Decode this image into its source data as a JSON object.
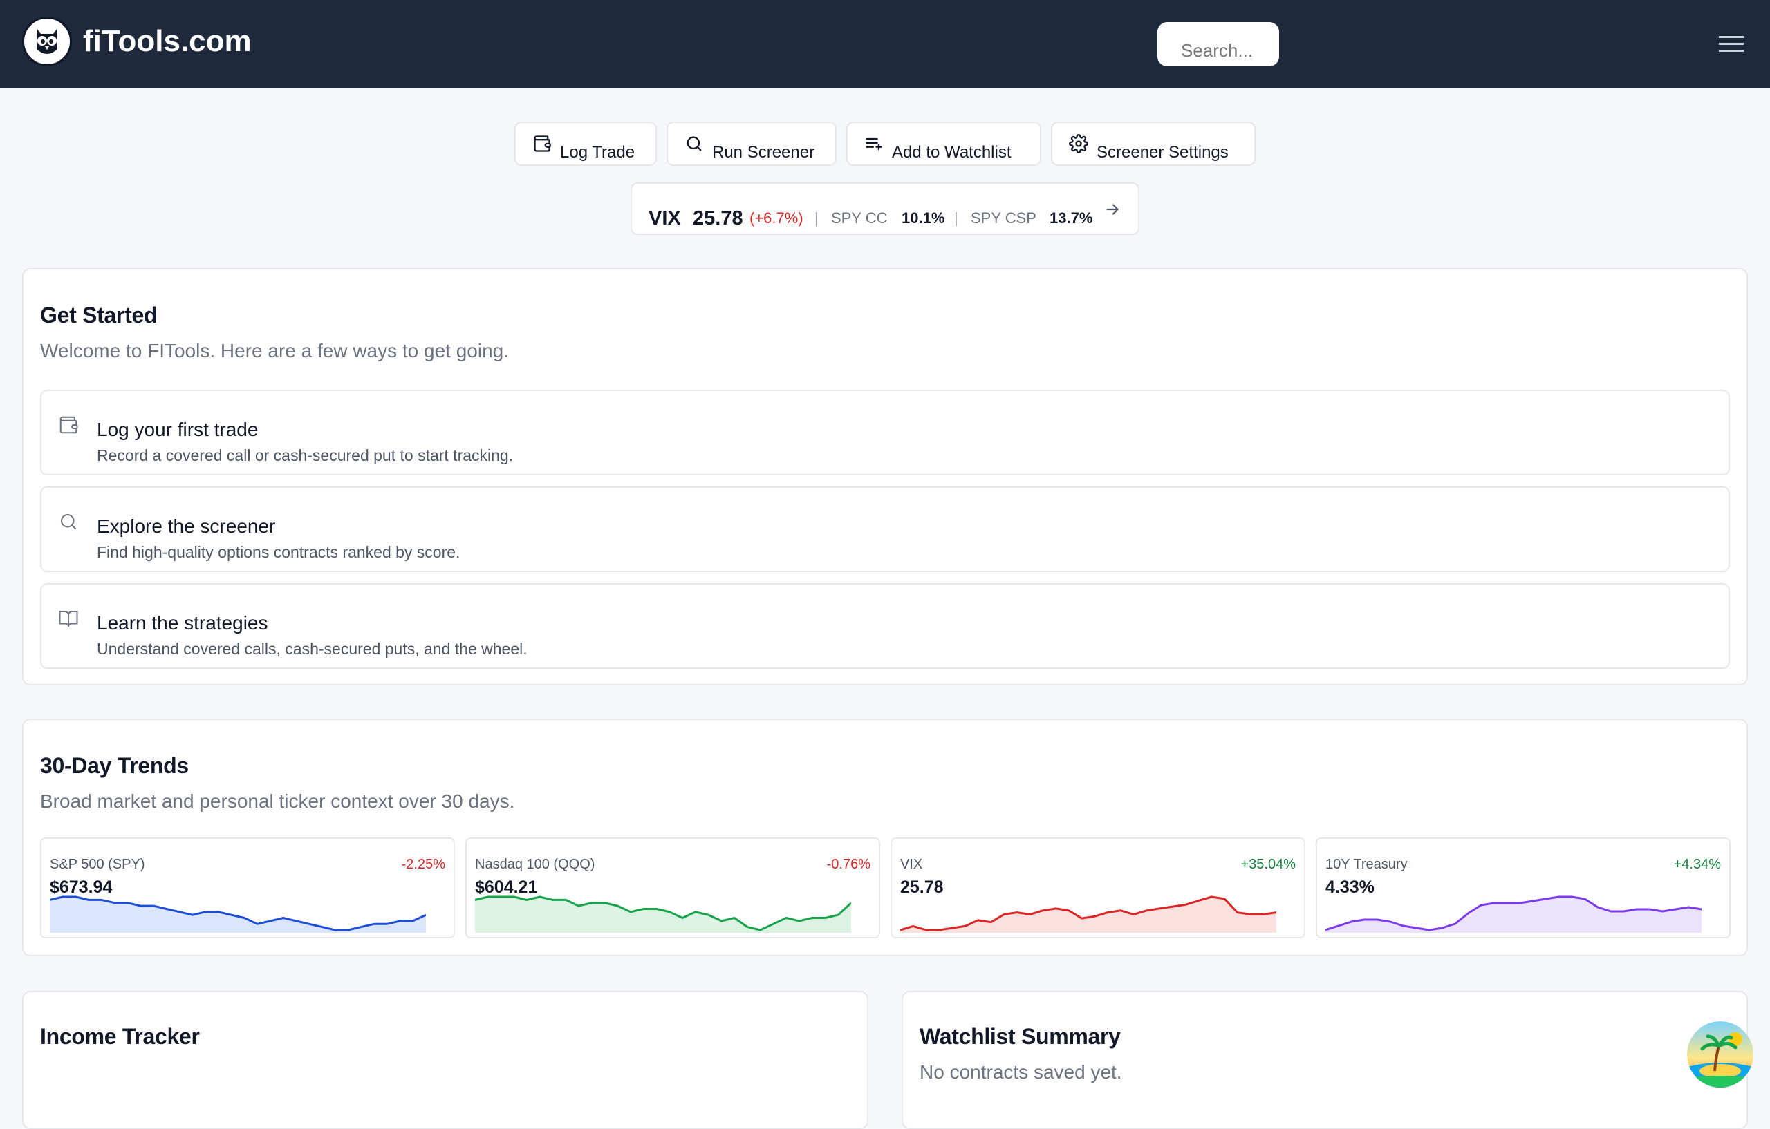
{
  "header": {
    "logo_text": "fiTools.com",
    "search_placeholder": "Search..."
  },
  "actions": [
    {
      "label": "Log Trade",
      "icon": "wallet-icon"
    },
    {
      "label": "Run Screener",
      "icon": "search-icon"
    },
    {
      "label": "Add to Watchlist",
      "icon": "list-plus-icon"
    },
    {
      "label": "Screener Settings",
      "icon": "gear-icon"
    }
  ],
  "ticker": {
    "vix_label": "VIX",
    "vix_value": "25.78",
    "vix_change": "(+6.7%)",
    "sep": "|",
    "spy_cc_label": "SPY CC",
    "spy_cc_value": "10.1%",
    "spy_csp_label": "SPY CSP",
    "spy_csp_value": "13.7%",
    "arrow_icon": "arrow-right-icon"
  },
  "get_started": {
    "title": "Get Started",
    "subtitle": "Welcome to FITools. Here are a few ways to get going.",
    "items": [
      {
        "title": "Log your first trade",
        "desc": "Record a covered call or cash-secured put to start tracking.",
        "icon": "wallet-icon"
      },
      {
        "title": "Explore the screener",
        "desc": "Find high-quality options contracts ranked by score.",
        "icon": "search-icon"
      },
      {
        "title": "Learn the strategies",
        "desc": "Understand covered calls, cash-secured puts, and the wheel.",
        "icon": "book-icon"
      }
    ]
  },
  "trends": {
    "title": "30-Day Trends",
    "subtitle": "Broad market and personal ticker context over 30 days.",
    "tiles": [
      {
        "name": "S&P 500 (SPY)",
        "value": "$673.94",
        "change": "-2.25%",
        "change_color": "#dc2626",
        "line_color": "#1d4ed8",
        "fill_color": "#dbe6fd",
        "series": [
          68,
          69,
          69,
          68,
          68,
          67,
          67,
          66,
          66,
          65,
          64,
          63,
          64,
          64,
          63,
          62,
          60,
          61,
          62,
          61,
          60,
          59,
          58,
          58,
          59,
          60,
          60,
          61,
          61,
          63
        ]
      },
      {
        "name": "Nasdaq 100 (QQQ)",
        "value": "$604.21",
        "change": "-0.76%",
        "change_color": "#dc2626",
        "line_color": "#16a34a",
        "fill_color": "#dcf3e3",
        "series": [
          70,
          71,
          71,
          71,
          70,
          71,
          70,
          70,
          68,
          69,
          69,
          68,
          66,
          67,
          67,
          66,
          64,
          66,
          65,
          63,
          64,
          61,
          60,
          62,
          64,
          63,
          64,
          64,
          65,
          69
        ]
      },
      {
        "name": "VIX",
        "value": "25.78",
        "change": "+35.04%",
        "change_color": "#15803d",
        "line_color": "#dc2626",
        "fill_color": "#fbe0e0",
        "series": [
          16,
          18,
          16,
          16,
          17,
          18,
          21,
          20,
          24,
          25,
          24,
          26,
          27,
          26,
          22,
          23,
          25,
          26,
          24,
          26,
          27,
          28,
          29,
          31,
          33,
          32,
          25,
          24,
          24,
          25
        ]
      },
      {
        "name": "10Y Treasury",
        "value": "4.33%",
        "change": "+4.34%",
        "change_color": "#15803d",
        "line_color": "#7c3aed",
        "fill_color": "#ebe2fb",
        "series": [
          4.18,
          4.2,
          4.22,
          4.23,
          4.23,
          4.22,
          4.2,
          4.19,
          4.18,
          4.19,
          4.21,
          4.26,
          4.3,
          4.31,
          4.31,
          4.31,
          4.32,
          4.33,
          4.34,
          4.34,
          4.33,
          4.29,
          4.27,
          4.27,
          4.28,
          4.28,
          4.27,
          4.28,
          4.29,
          4.28
        ]
      }
    ]
  },
  "income": {
    "title": "Income Tracker"
  },
  "watchlist": {
    "title": "Watchlist Summary",
    "empty": "No contracts saved yet."
  },
  "colors": {
    "header_bg": "#1e293b",
    "accent_red": "#dc2626",
    "accent_green": "#15803d"
  }
}
